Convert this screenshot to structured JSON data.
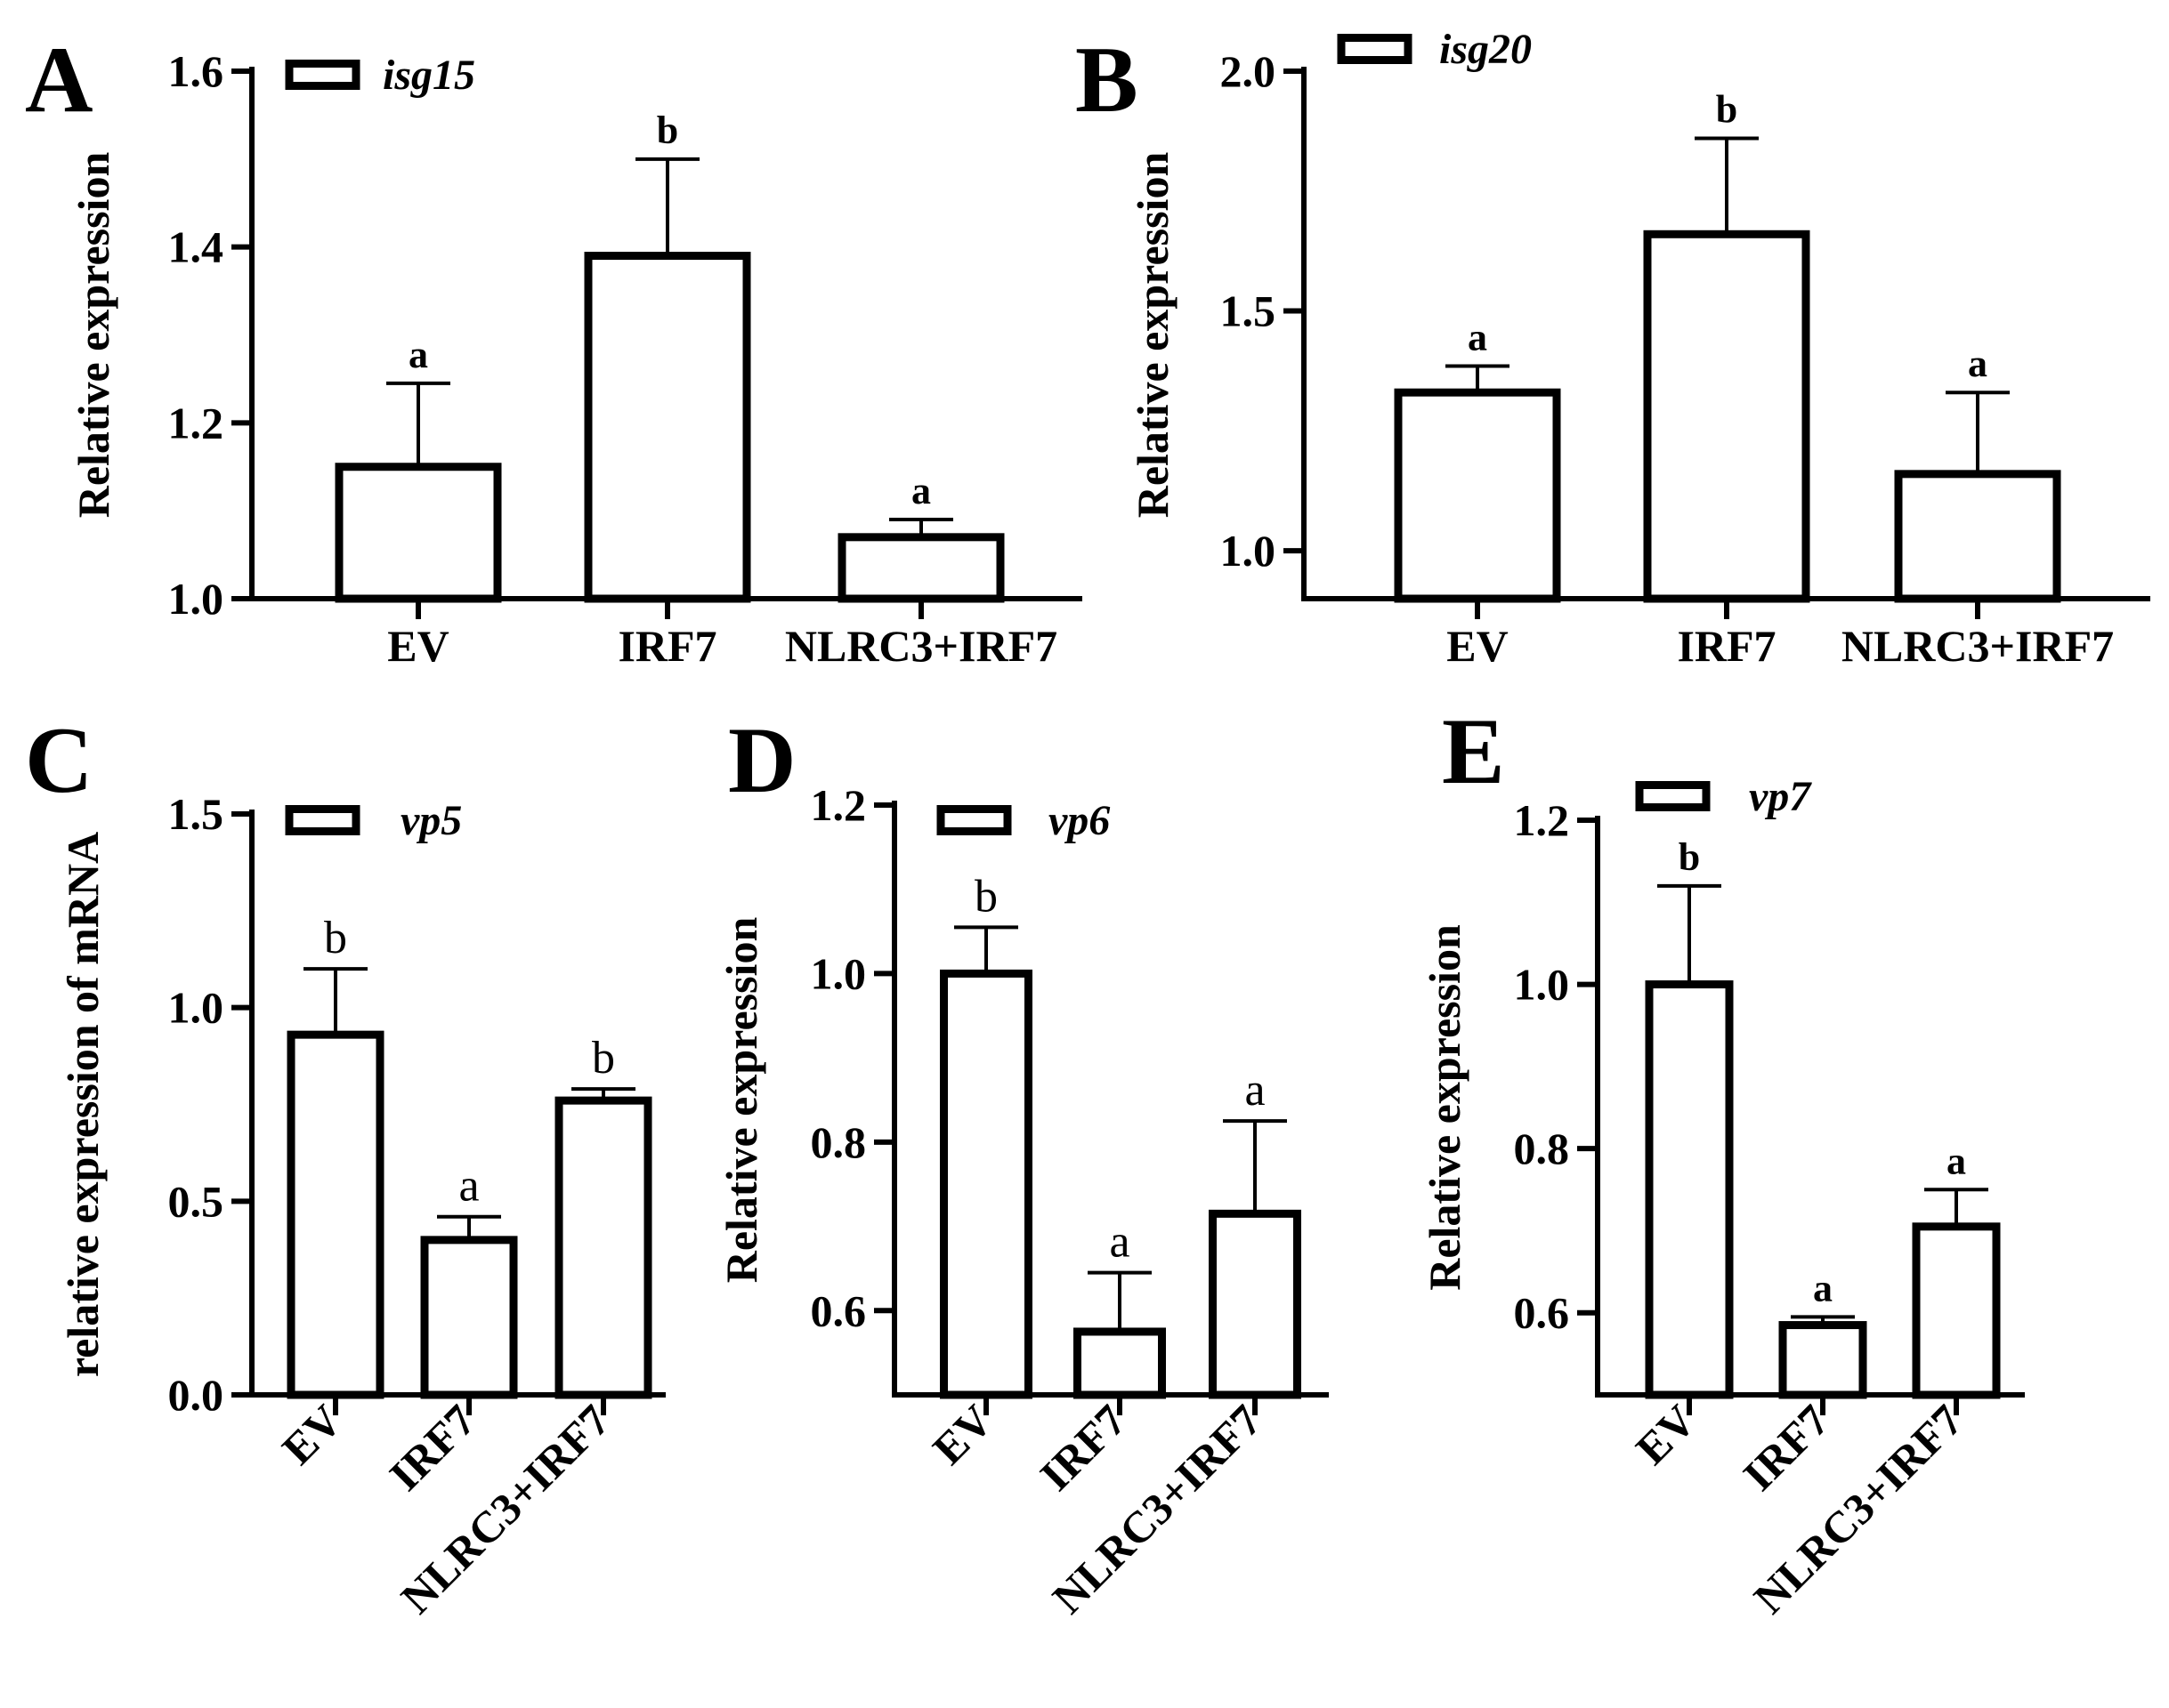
{
  "figure": {
    "colors": {
      "bar_fill": "#ffffff",
      "bar_edge": "#000000",
      "text": "#000000"
    }
  },
  "chart_data": [
    {
      "panel": "A",
      "type": "bar",
      "series_name": "isg15",
      "categories": [
        "EV",
        "IRF7",
        "NLRC3+IRF7"
      ],
      "values": [
        1.15,
        1.39,
        1.07
      ],
      "errors": [
        0.095,
        0.11,
        0.02
      ],
      "significance": [
        "a",
        "b",
        "a"
      ],
      "ylabel": "Relative expression",
      "ylim": [
        1.0,
        1.6
      ],
      "yticks": [
        1.0,
        1.2,
        1.4,
        1.6
      ],
      "ytick_labels": [
        "1.0",
        "1.2",
        "1.4",
        "1.6"
      ]
    },
    {
      "panel": "B",
      "type": "bar",
      "series_name": "isg20",
      "categories": [
        "EV",
        "IRF7",
        "NLRC3+IRF7"
      ],
      "values": [
        1.33,
        1.66,
        1.16
      ],
      "errors": [
        0.055,
        0.2,
        0.17
      ],
      "significance": [
        "a",
        "b",
        "a"
      ],
      "ylabel": "Relative expression",
      "ylim": [
        0.9,
        2.0
      ],
      "yticks": [
        1.0,
        1.5,
        2.0
      ],
      "ytick_labels": [
        "1.0",
        "1.5",
        "2.0"
      ]
    },
    {
      "panel": "C",
      "type": "bar",
      "series_name": "vp5",
      "categories": [
        "EV",
        "IRF7",
        "NLRC3+IRF7"
      ],
      "values": [
        0.93,
        0.4,
        0.76
      ],
      "errors": [
        0.17,
        0.06,
        0.03
      ],
      "significance": [
        "b",
        "a",
        "b"
      ],
      "ylabel": "relative expression of mRNA",
      "ylim": [
        0.0,
        1.5
      ],
      "yticks": [
        0.0,
        0.5,
        1.0,
        1.5
      ],
      "ytick_labels": [
        "0.0",
        "0.5",
        "1.0",
        "1.5"
      ]
    },
    {
      "panel": "D",
      "type": "bar",
      "series_name": "vp6",
      "categories": [
        "EV",
        "IRF7",
        "NLRC3+IRF7"
      ],
      "values": [
        1.0,
        0.575,
        0.715
      ],
      "errors": [
        0.055,
        0.07,
        0.11
      ],
      "significance": [
        "b",
        "a",
        "a"
      ],
      "ylabel": "Relative expression",
      "ylim": [
        0.5,
        1.2
      ],
      "yticks": [
        0.6,
        0.8,
        1.0,
        1.2
      ],
      "ytick_labels": [
        "0.6",
        "0.8",
        "1.0",
        "1.2"
      ]
    },
    {
      "panel": "E",
      "type": "bar",
      "series_name": "vp7",
      "categories": [
        "EV",
        "IRF7",
        "NLRC3+IRF7"
      ],
      "values": [
        1.0,
        0.585,
        0.705
      ],
      "errors": [
        0.12,
        0.01,
        0.045
      ],
      "significance": [
        "b",
        "a",
        "a"
      ],
      "ylabel": "Relative expression",
      "ylim": [
        0.5,
        1.2
      ],
      "yticks": [
        0.6,
        0.8,
        1.0,
        1.2
      ],
      "ytick_labels": [
        "0.6",
        "0.8",
        "1.0",
        "1.2"
      ]
    }
  ]
}
